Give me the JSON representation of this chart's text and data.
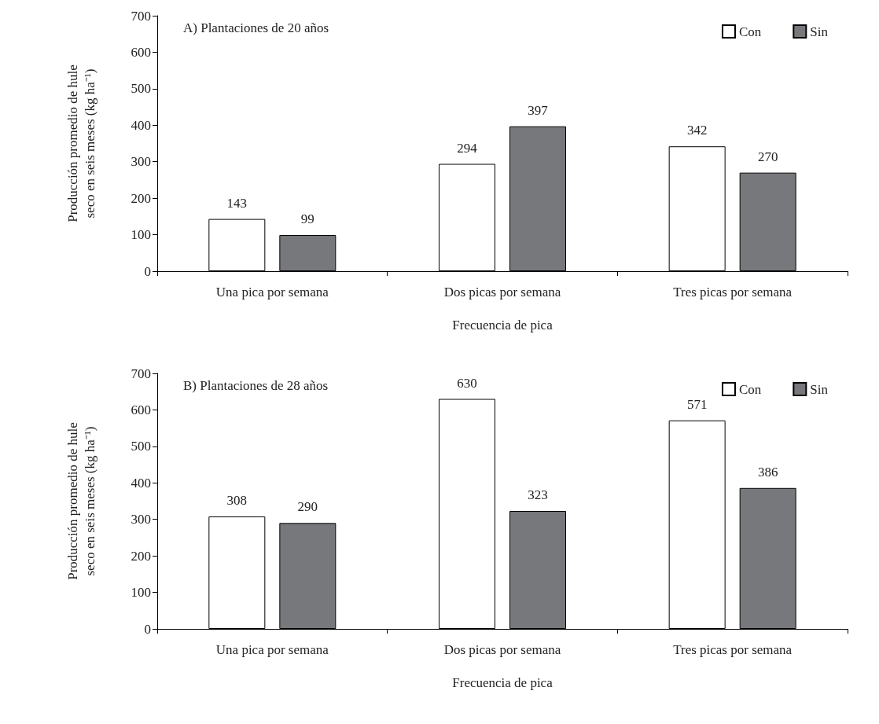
{
  "chart_data": [
    {
      "type": "bar",
      "title": "A) Plantaciones de 20 años",
      "xlabel": "Frecuencia de pica",
      "ylabel": "Producción promedio de hule\nseco en seis meses (kg ha⁻¹)",
      "categories": [
        "Una pica por semana",
        "Dos picas por semana",
        "Tres picas por semana"
      ],
      "series": [
        {
          "name": "Con",
          "color": "#ffffff",
          "values": [
            143,
            294,
            342
          ]
        },
        {
          "name": "Sin",
          "color": "#77787b",
          "values": [
            99,
            397,
            270
          ]
        }
      ],
      "ylim": [
        0,
        700
      ],
      "yticks": [
        0,
        100,
        200,
        300,
        400,
        500,
        600,
        700
      ],
      "grid": false,
      "legend": "top right",
      "data_labels": true
    },
    {
      "type": "bar",
      "title": "B) Plantaciones de 28 años",
      "xlabel": "Frecuencia de pica",
      "ylabel": "Producción promedio de hule\nseco en seis meses (kg ha⁻¹)",
      "categories": [
        "Una pica por semana",
        "Dos picas por semana",
        "Tres picas por semana"
      ],
      "series": [
        {
          "name": "Con",
          "color": "#ffffff",
          "values": [
            308,
            630,
            571
          ]
        },
        {
          "name": "Sin",
          "color": "#77787b",
          "values": [
            290,
            323,
            386
          ]
        }
      ],
      "ylim": [
        0,
        700
      ],
      "yticks": [
        0,
        100,
        200,
        300,
        400,
        500,
        600,
        700
      ],
      "grid": false,
      "legend": "top right",
      "data_labels": true
    }
  ]
}
